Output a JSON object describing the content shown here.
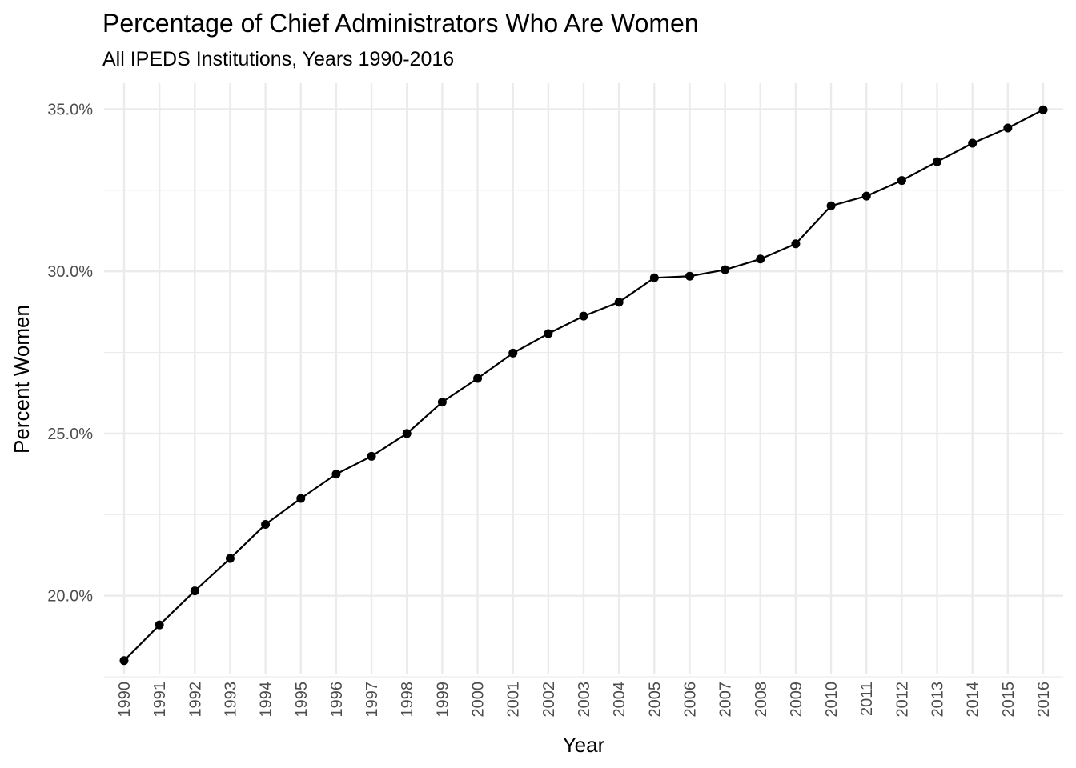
{
  "chart_data": {
    "type": "line",
    "title": "Percentage of Chief Administrators Who Are Women",
    "subtitle": "All IPEDS Institutions, Years 1990-2016",
    "xlabel": "Year",
    "ylabel": "Percent Women",
    "x": [
      "1990",
      "1991",
      "1992",
      "1993",
      "1994",
      "1995",
      "1996",
      "1997",
      "1998",
      "1999",
      "2000",
      "2001",
      "2002",
      "2003",
      "2004",
      "2005",
      "2006",
      "2007",
      "2008",
      "2009",
      "2010",
      "2011",
      "2012",
      "2013",
      "2014",
      "2015",
      "2016"
    ],
    "y": [
      18.0,
      19.1,
      20.15,
      21.15,
      22.2,
      23.0,
      23.75,
      24.3,
      25.0,
      25.97,
      26.7,
      27.48,
      28.08,
      28.62,
      29.05,
      29.8,
      29.85,
      30.05,
      30.38,
      30.85,
      32.02,
      32.32,
      32.8,
      33.38,
      33.95,
      34.42,
      34.98
    ],
    "ylim": [
      17.6,
      35.8
    ],
    "yticks": [
      20,
      25,
      30,
      35
    ],
    "ytick_labels": [
      "20.0%",
      "25.0%",
      "30.0%",
      "35.0%"
    ],
    "ytick_minor": [
      17.5,
      22.5,
      27.5,
      32.5
    ],
    "grid": true,
    "legend": "none",
    "colors": {
      "line": "#000000",
      "point": "#000000",
      "grid": "#ebebeb",
      "tick_text": "#4d4d4d",
      "text": "#000000",
      "background": "#ffffff"
    }
  }
}
